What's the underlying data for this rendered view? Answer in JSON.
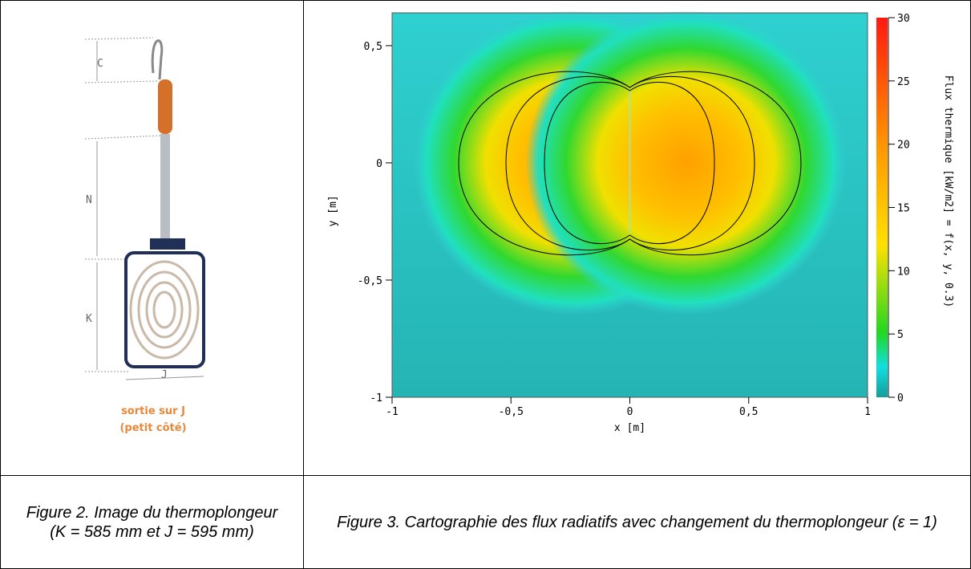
{
  "figure2": {
    "labels": [
      "C",
      "N",
      "K",
      "J"
    ],
    "note": [
      "sortie sur J",
      "(petit côté)"
    ],
    "caption": "Figure 2. Image du thermoplongeur (K = 585 mm et J = 595 mm)"
  },
  "figure3": {
    "chart_data": {
      "type": "heatmap",
      "xlabel": "x [m]",
      "ylabel": "y [m]",
      "xlim": [
        -1,
        1
      ],
      "ylim": [
        -1,
        0.64
      ],
      "xticks": [
        -1,
        {
          "value": -0.5,
          "label": "-0,5"
        },
        0,
        {
          "value": 0.5,
          "label": "0,5"
        },
        1
      ],
      "yticks": [
        {
          "value": 0.5,
          "label": "0,5"
        },
        0,
        {
          "value": -0.5,
          "label": "-0,5"
        },
        -1
      ],
      "colorbar": {
        "label": "Flux thermique [kW/m2] = f(x, y, 0.3)",
        "lim": [
          0,
          30
        ],
        "ticks": [
          0,
          5,
          10,
          15,
          20,
          25,
          30
        ]
      }
    },
    "caption": "Figure 3. Cartographie des flux radiatifs avec changement du thermoplongeur (ε = 1)"
  }
}
